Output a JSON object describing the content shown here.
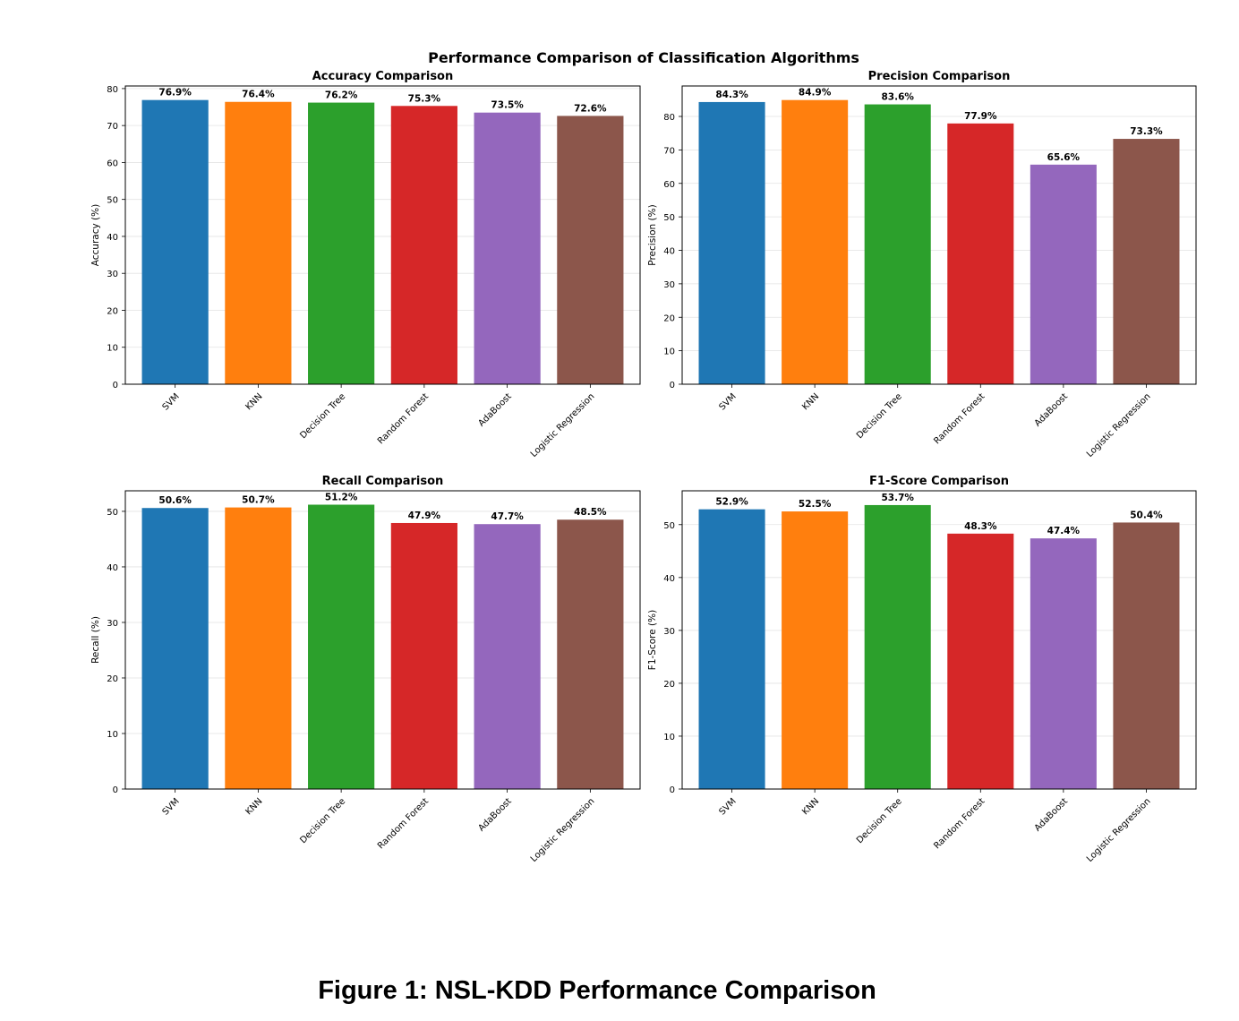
{
  "suptitle": "Performance Comparison of Classification Algorithms",
  "caption": "Figure 1: NSL-KDD Performance Comparison",
  "colors": [
    "#1f77b4",
    "#ff7f0e",
    "#2ca02c",
    "#d62728",
    "#9467bd",
    "#8c564b"
  ],
  "chart_data": [
    {
      "type": "bar",
      "title": "Accuracy Comparison",
      "xlabel": "",
      "ylabel": "Accuracy (%)",
      "categories": [
        "SVM",
        "KNN",
        "Decision Tree",
        "Random Forest",
        "AdaBoost",
        "Logistic Regression"
      ],
      "values": [
        76.9,
        76.4,
        76.2,
        75.3,
        73.5,
        72.6
      ],
      "labels": [
        "76.9%",
        "76.4%",
        "76.2%",
        "75.3%",
        "73.5%",
        "72.6%"
      ],
      "ylim": [
        0,
        80.7
      ],
      "yticks": [
        0,
        10,
        20,
        30,
        40,
        50,
        60,
        70,
        80
      ],
      "grid": true
    },
    {
      "type": "bar",
      "title": "Precision Comparison",
      "xlabel": "",
      "ylabel": "Precision (%)",
      "categories": [
        "SVM",
        "KNN",
        "Decision Tree",
        "Random Forest",
        "AdaBoost",
        "Logistic Regression"
      ],
      "values": [
        84.3,
        84.9,
        83.6,
        77.9,
        65.6,
        73.3
      ],
      "labels": [
        "84.3%",
        "84.9%",
        "83.6%",
        "77.9%",
        "65.6%",
        "73.3%"
      ],
      "ylim": [
        0,
        89.1
      ],
      "yticks": [
        0,
        10,
        20,
        30,
        40,
        50,
        60,
        70,
        80
      ],
      "grid": true
    },
    {
      "type": "bar",
      "title": "Recall Comparison",
      "xlabel": "",
      "ylabel": "Recall (%)",
      "categories": [
        "SVM",
        "KNN",
        "Decision Tree",
        "Random Forest",
        "AdaBoost",
        "Logistic Regression"
      ],
      "values": [
        50.6,
        50.7,
        51.2,
        47.9,
        47.7,
        48.5
      ],
      "labels": [
        "50.6%",
        "50.7%",
        "51.2%",
        "47.9%",
        "47.7%",
        "48.5%"
      ],
      "ylim": [
        0,
        53.7
      ],
      "yticks": [
        0,
        10,
        20,
        30,
        40,
        50
      ],
      "grid": true
    },
    {
      "type": "bar",
      "title": "F1-Score Comparison",
      "xlabel": "",
      "ylabel": "F1-Score (%)",
      "categories": [
        "SVM",
        "KNN",
        "Decision Tree",
        "Random Forest",
        "AdaBoost",
        "Logistic Regression"
      ],
      "values": [
        52.9,
        52.5,
        53.7,
        48.3,
        47.4,
        50.4
      ],
      "labels": [
        "52.9%",
        "52.5%",
        "53.7%",
        "48.3%",
        "47.4%",
        "50.4%"
      ],
      "ylim": [
        0,
        56.4
      ],
      "yticks": [
        0,
        10,
        20,
        30,
        40,
        50
      ],
      "grid": true
    }
  ]
}
